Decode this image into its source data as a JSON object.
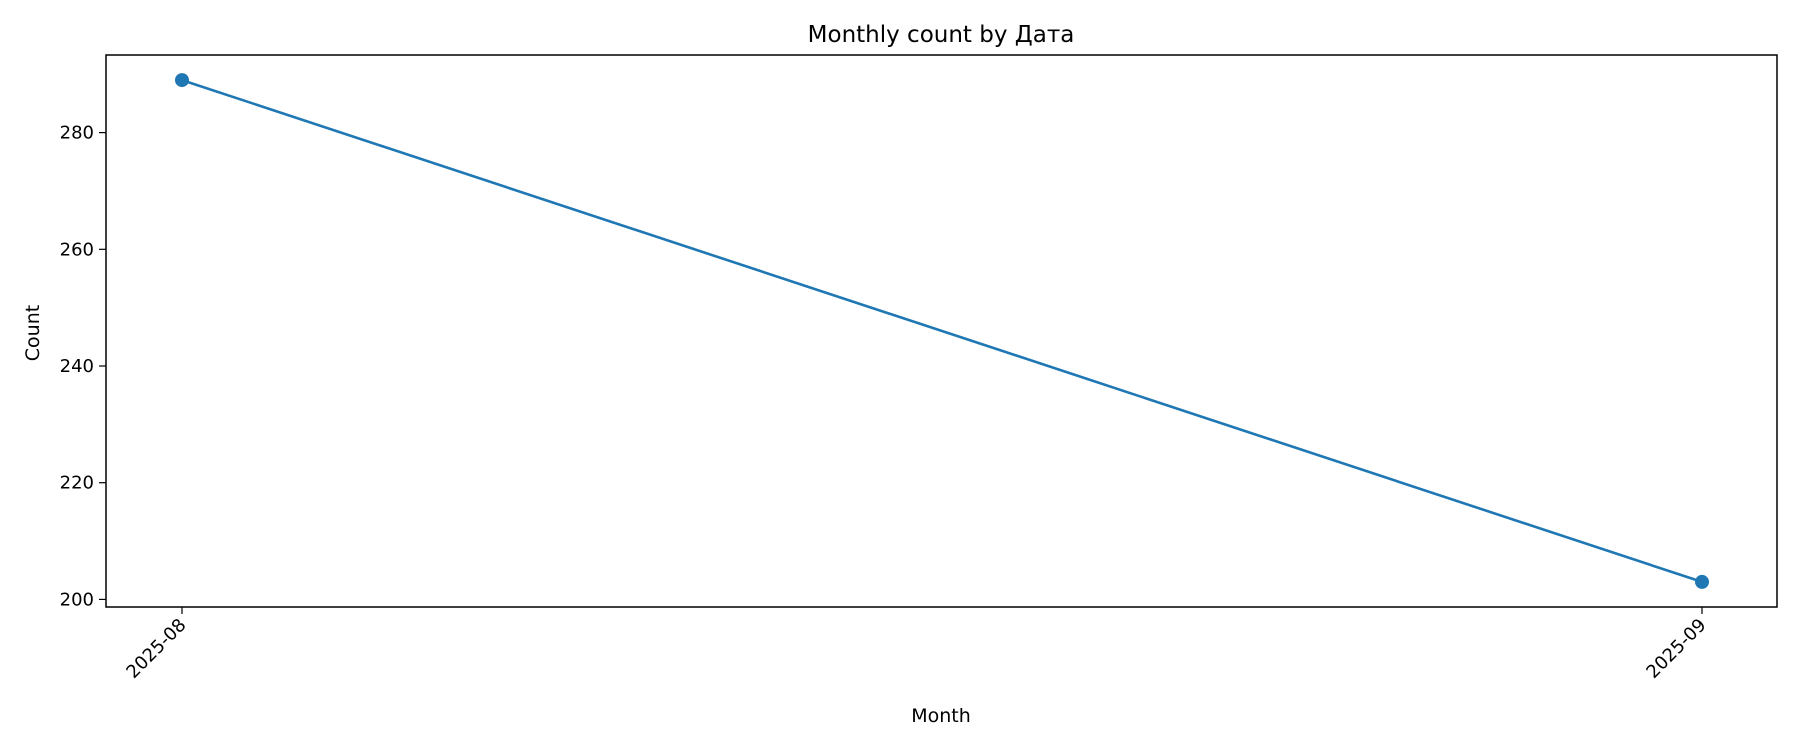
{
  "chart_data": {
    "type": "line",
    "title": "Monthly count by Дата",
    "xlabel": "Month",
    "ylabel": "Count",
    "categories": [
      "2025-08",
      "2025-09"
    ],
    "series": [
      {
        "values": [
          289,
          203
        ],
        "color": "#1f77b4"
      }
    ],
    "ylim": [
      198.7,
      293.3
    ],
    "y_ticks": [
      200,
      220,
      240,
      260,
      280
    ],
    "grid": false,
    "legend": "none",
    "markers": "circle"
  }
}
